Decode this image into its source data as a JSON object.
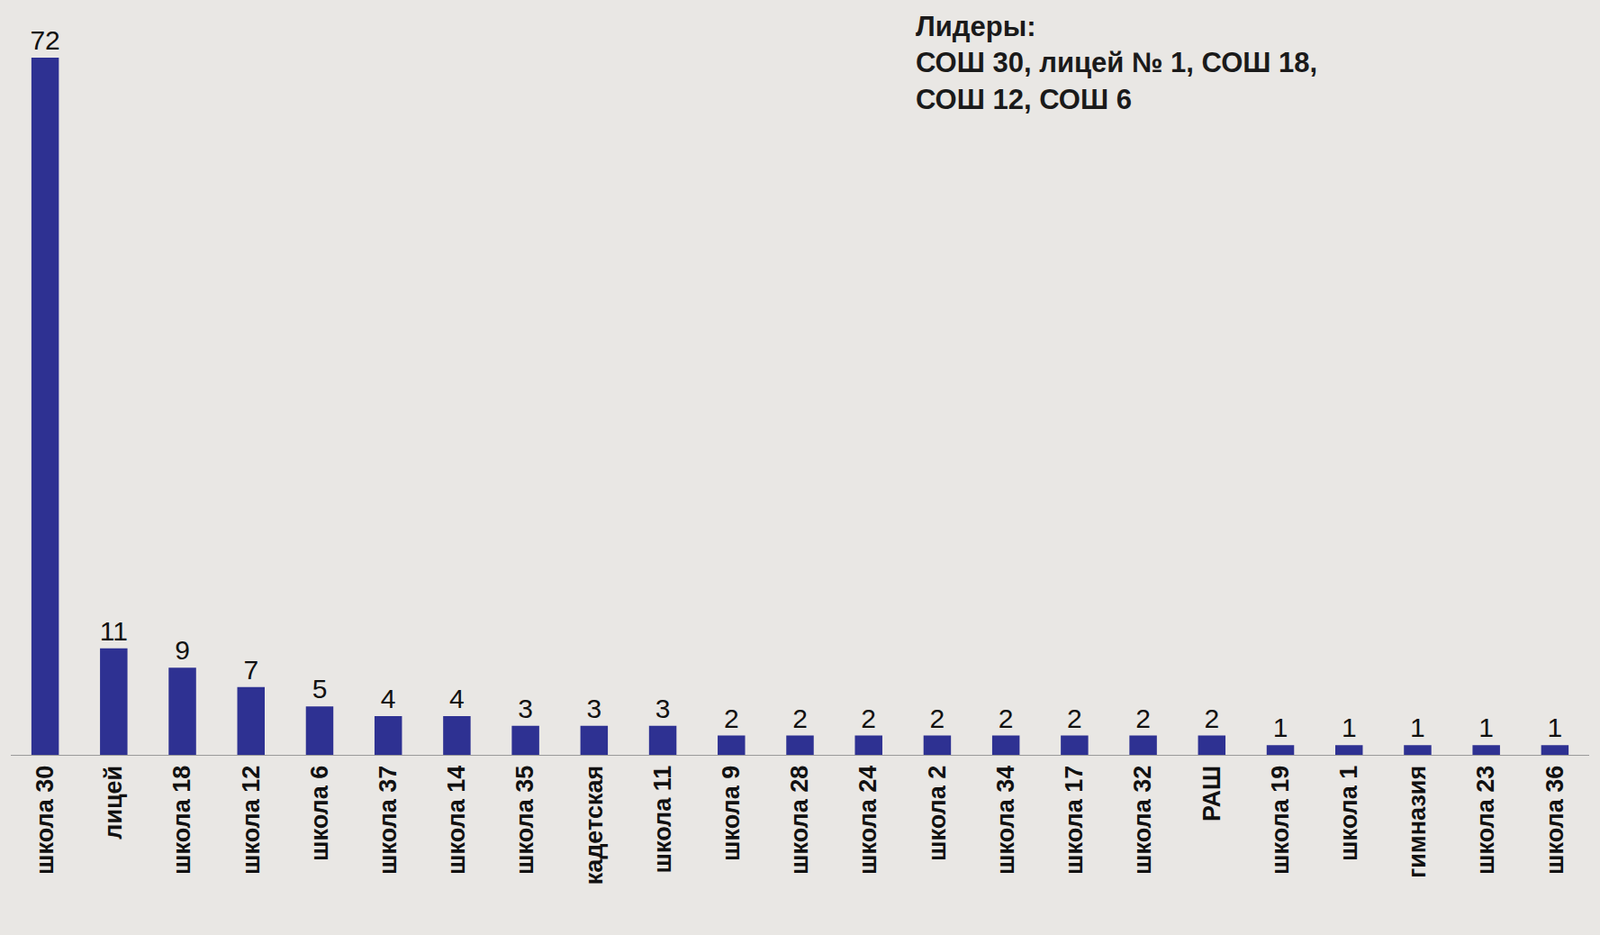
{
  "chart_data": {
    "type": "bar",
    "annotation": [
      "Лидеры:",
      "СОШ 30, лицей № 1, СОШ 18,",
      "СОШ 12, СОШ 6"
    ],
    "categories": [
      "школа 30",
      "лицей",
      "школа 18",
      "школа 12",
      "школа 6",
      "школа 37",
      "школа 14",
      "школа 35",
      "кадетская",
      "школа 11",
      "школа 9",
      "школа 28",
      "школа 24",
      "школа 2",
      "школа 34",
      "школа 17",
      "школа 32",
      "РАШ",
      "школа 19",
      "школа 1",
      "гимназия",
      "школа 23",
      "школа 36"
    ],
    "values": [
      72,
      11,
      9,
      7,
      5,
      4,
      4,
      3,
      3,
      3,
      2,
      2,
      2,
      2,
      2,
      2,
      2,
      2,
      1,
      1,
      1,
      1,
      1
    ],
    "color": "#2e3192",
    "ylim": [
      0,
      72
    ],
    "grid": false,
    "data_labels": true,
    "tick_labels": "x"
  }
}
